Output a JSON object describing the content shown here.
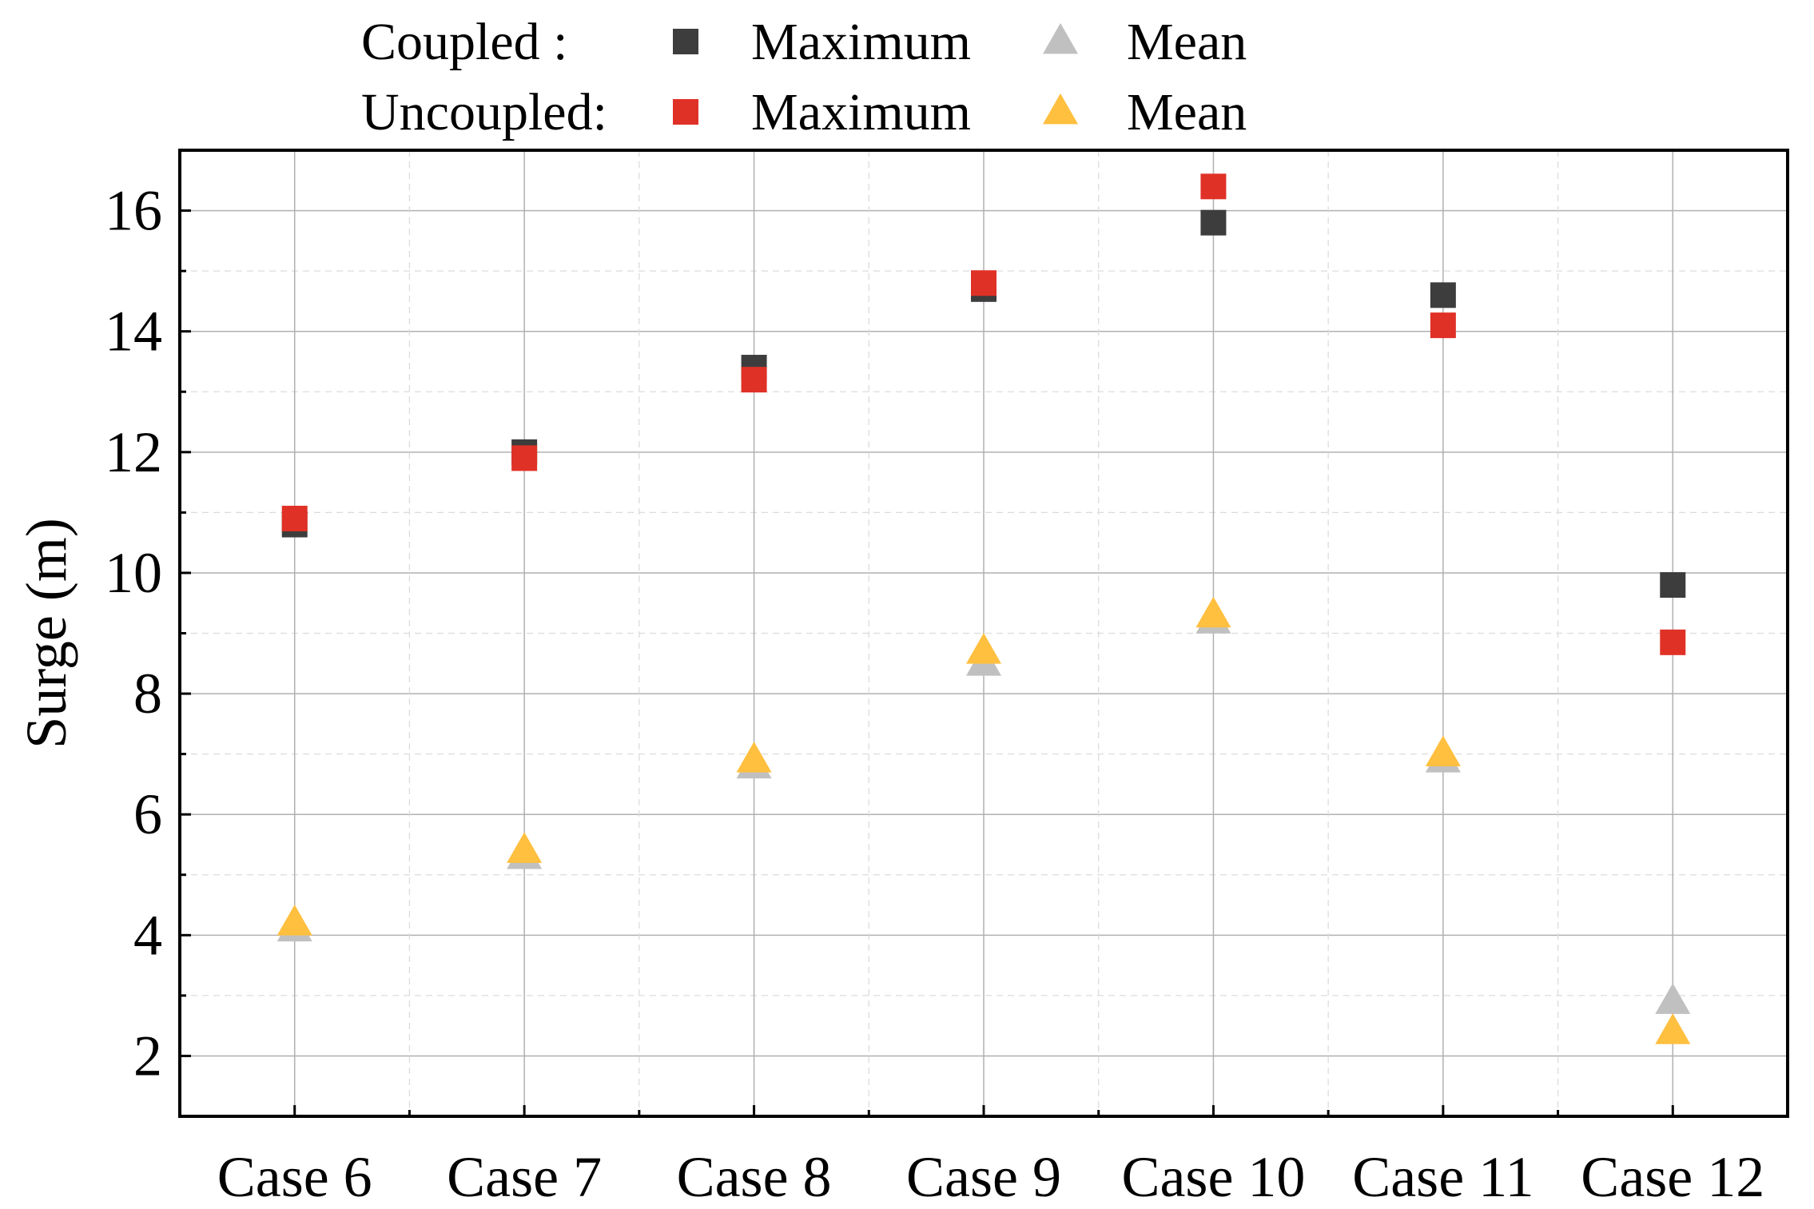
{
  "chart_data": {
    "type": "scatter",
    "categories": [
      "Case 6",
      "Case 7",
      "Case 8",
      "Case 9",
      "Case 10",
      "Case 11",
      "Case 12"
    ],
    "ylabel": "Surge (m)",
    "xlabel": "",
    "ylim": [
      1,
      17
    ],
    "yticks": [
      2,
      4,
      6,
      8,
      10,
      12,
      14,
      16
    ],
    "grid": true,
    "legend": {
      "rows": [
        {
          "group": "Coupled :",
          "items": [
            {
              "label": "Maximum",
              "series": "coupled_max"
            },
            {
              "label": "Mean",
              "series": "coupled_mean"
            }
          ]
        },
        {
          "group": "Uncoupled:",
          "items": [
            {
              "label": "Maximum",
              "series": "uncoupled_max"
            },
            {
              "label": "Mean",
              "series": "uncoupled_mean"
            }
          ]
        }
      ],
      "placement": "top"
    },
    "series": [
      {
        "id": "coupled_max",
        "name": "Coupled Maximum",
        "marker": "square",
        "color": "#3d3d3d",
        "values": [
          10.8,
          12.0,
          13.4,
          14.7,
          15.8,
          14.6,
          9.8
        ]
      },
      {
        "id": "coupled_mean",
        "name": "Coupled Mean",
        "marker": "triangle",
        "color": "#c0c0c0",
        "values": [
          4.1,
          5.3,
          6.8,
          8.5,
          9.2,
          6.9,
          2.9
        ]
      },
      {
        "id": "uncoupled_max",
        "name": "Uncoupled Maximum",
        "marker": "square",
        "color": "#e03127",
        "values": [
          10.9,
          11.9,
          13.2,
          14.8,
          16.4,
          14.1,
          8.85
        ]
      },
      {
        "id": "uncoupled_mean",
        "name": "Uncoupled Mean",
        "marker": "triangle",
        "color": "#ffbf3f",
        "values": [
          4.2,
          5.4,
          6.9,
          8.7,
          9.3,
          7.0,
          2.4
        ]
      }
    ]
  }
}
